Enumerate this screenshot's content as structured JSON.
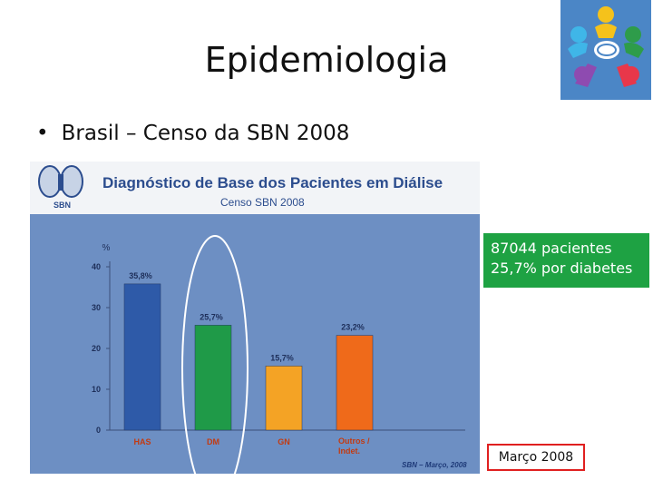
{
  "slide": {
    "title": "Epidemiologia",
    "bullet": "Brasil – Censo da SBN 2008",
    "bullet_marker": "•",
    "logo_icon": "people-circle-logo-icon"
  },
  "figure": {
    "logo_text": "SBN",
    "source": "SBN – Março, 2008"
  },
  "chart_data": {
    "type": "bar",
    "title": "Diagnóstico de Base dos Pacientes em Diálise",
    "subtitle": "Censo SBN 2008",
    "ylabel": "%",
    "ylim": [
      0,
      40
    ],
    "yticks": [
      "0",
      "10",
      "20",
      "30",
      "40"
    ],
    "categories": [
      "HAS",
      "DM",
      "GN",
      "Outros / Indet."
    ],
    "values": [
      35.8,
      25.7,
      15.7,
      23.2
    ],
    "data_labels": [
      "35,8%",
      "25,7%",
      "15,7%",
      "23,2%"
    ],
    "colors": [
      "#2e5aa8",
      "#1f9a48",
      "#f4a325",
      "#ef6a1a"
    ],
    "highlight_category": "DM",
    "highlight_color": "#ffffff",
    "grid": false
  },
  "notes": {
    "summary_lines": [
      "87044 pacientes",
      "25,7% por diabetes"
    ],
    "summary_color": "#1ea243",
    "date": "Março 2008",
    "date_border_color": "#e02020"
  }
}
